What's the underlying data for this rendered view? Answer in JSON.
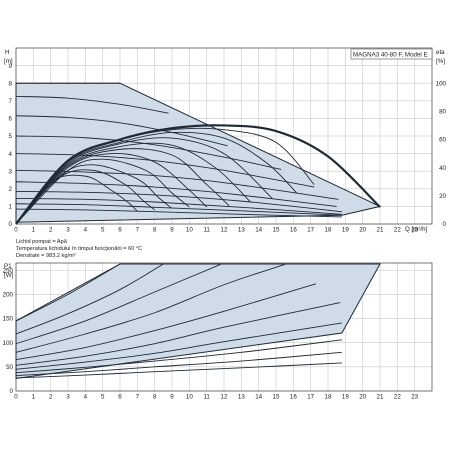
{
  "chart_data": [
    {
      "type": "line",
      "title": "MAGNA3 40-80 F, Model E",
      "y_label_left": "H",
      "y_unit_left": "[m]",
      "y_label_right": "eta",
      "y_unit_right": "[%]",
      "x_label": "Q [m³/h]",
      "xlim": [
        0,
        24
      ],
      "ylim": [
        0,
        10
      ],
      "ylim_right": [
        0,
        125
      ],
      "x_ticks": [
        "0",
        "1",
        "2",
        "3",
        "4",
        "5",
        "6",
        "7",
        "8",
        "9",
        "10",
        "11",
        "12",
        "13",
        "14",
        "15",
        "16",
        "17",
        "18",
        "19",
        "20",
        "21",
        "22",
        "23"
      ],
      "y_ticks": [
        "0",
        "1",
        "2",
        "3",
        "4",
        "5",
        "6",
        "7",
        "8",
        "9"
      ],
      "y_ticks_right": [
        "0",
        "20",
        "40",
        "60",
        "80",
        "100"
      ],
      "grid": true,
      "envelope": {
        "x": [
          0,
          6,
          21,
          18.8,
          0
        ],
        "y": [
          8,
          8,
          1.0,
          0.5,
          0.1
        ]
      },
      "series": [
        {
          "x": [
            0,
            6
          ],
          "y": [
            8,
            8
          ]
        },
        {
          "x": [
            0,
            3,
            6,
            8.8
          ],
          "y": [
            7.25,
            7.15,
            6.8,
            6.3
          ]
        },
        {
          "x": [
            0,
            3,
            6,
            9,
            12.2
          ],
          "y": [
            6.15,
            6.05,
            5.75,
            5.2,
            4.45
          ]
        },
        {
          "x": [
            0,
            4,
            8,
            12,
            15.3
          ],
          "y": [
            5.0,
            4.9,
            4.5,
            3.8,
            3.1
          ]
        },
        {
          "x": [
            0,
            4,
            8,
            12,
            17.2
          ],
          "y": [
            4.0,
            3.9,
            3.6,
            3.05,
            2.1
          ]
        },
        {
          "x": [
            0,
            4,
            8,
            12,
            18.6
          ],
          "y": [
            3.05,
            2.95,
            2.75,
            2.35,
            1.4
          ]
        },
        {
          "x": [
            0,
            4,
            8,
            12,
            18.5
          ],
          "y": [
            2.4,
            2.3,
            2.1,
            1.75,
            1.0
          ]
        },
        {
          "x": [
            0,
            4,
            8,
            13,
            18.8
          ],
          "y": [
            1.85,
            1.8,
            1.65,
            1.3,
            0.7
          ]
        },
        {
          "x": [
            0,
            4,
            8,
            13,
            18.8
          ],
          "y": [
            1.45,
            1.4,
            1.25,
            0.95,
            0.55
          ]
        },
        {
          "x": [
            0,
            4,
            8,
            13,
            18.8
          ],
          "y": [
            1.15,
            1.1,
            0.95,
            0.75,
            0.5
          ]
        },
        {
          "x": [
            0,
            4,
            8,
            13,
            18.8
          ],
          "y": [
            0.85,
            0.8,
            0.7,
            0.55,
            0.4
          ]
        }
      ],
      "efficiency_curves_percent": [
        {
          "x": [
            0,
            3,
            6,
            9,
            12,
            15,
            18,
            21
          ],
          "y": [
            0,
            45,
            60,
            68,
            70,
            66,
            48,
            12
          ]
        },
        {
          "x": [
            0,
            3,
            6,
            9,
            12,
            15,
            17.2
          ],
          "y": [
            0,
            45,
            60,
            67,
            67,
            58,
            28
          ]
        },
        {
          "x": [
            0,
            3,
            6,
            9,
            12,
            14.5,
            16.2
          ],
          "y": [
            0,
            44,
            58,
            65,
            61,
            43,
            22
          ]
        },
        {
          "x": [
            0,
            3,
            6,
            9,
            12,
            14.8
          ],
          "y": [
            0,
            43,
            57,
            61,
            50,
            18
          ]
        },
        {
          "x": [
            0,
            3,
            6,
            9,
            11.5,
            13.5
          ],
          "y": [
            0,
            42,
            55,
            56,
            40,
            16
          ]
        },
        {
          "x": [
            0,
            3,
            6,
            9,
            11,
            12.3
          ],
          "y": [
            0,
            41,
            53,
            49,
            28,
            13
          ]
        },
        {
          "x": [
            0,
            3,
            5.5,
            8,
            10,
            11.0
          ],
          "y": [
            0,
            40,
            50,
            44,
            24,
            12
          ]
        },
        {
          "x": [
            0,
            3,
            5,
            7.5,
            9.0,
            10.0
          ],
          "y": [
            0,
            38,
            46,
            38,
            22,
            12
          ]
        },
        {
          "x": [
            0,
            2.5,
            4.5,
            7,
            8.2,
            9.0
          ],
          "y": [
            0,
            34,
            42,
            32,
            19,
            11
          ]
        },
        {
          "x": [
            0,
            2.5,
            4.5,
            6.3,
            7.3,
            8.0
          ],
          "y": [
            0,
            33,
            38,
            28,
            17,
            10
          ]
        },
        {
          "x": [
            0,
            2,
            4,
            5.5,
            6.5,
            7.0
          ],
          "y": [
            0,
            30,
            34,
            24,
            15,
            9
          ]
        }
      ]
    },
    {
      "type": "line",
      "y_label": "P1",
      "y_unit": "[W]",
      "xlim": [
        0,
        24
      ],
      "ylim": [
        0,
        265
      ],
      "x_ticks": [
        "0",
        "1",
        "2",
        "3",
        "4",
        "5",
        "6",
        "7",
        "8",
        "9",
        "10",
        "11",
        "12",
        "13",
        "14",
        "15",
        "16",
        "17",
        "18",
        "19",
        "20",
        "21",
        "22",
        "23"
      ],
      "y_ticks": [
        "0",
        "50",
        "100",
        "150",
        "200",
        "250"
      ],
      "grid": true,
      "envelope": {
        "x": [
          0,
          6,
          21,
          18.8,
          0
        ],
        "y": [
          145,
          263,
          263,
          120,
          26
        ]
      },
      "series": [
        {
          "x": [
            0,
            3,
            6
          ],
          "y": [
            145,
            200,
            263
          ]
        },
        {
          "x": [
            0,
            3,
            6,
            8.5
          ],
          "y": [
            118,
            160,
            210,
            263
          ]
        },
        {
          "x": [
            0,
            4,
            8,
            11.8
          ],
          "y": [
            98,
            145,
            205,
            262
          ]
        },
        {
          "x": [
            0,
            4,
            8,
            12,
            15.5
          ],
          "y": [
            80,
            118,
            162,
            220,
            262
          ]
        },
        {
          "x": [
            0,
            4,
            8,
            12,
            17.3
          ],
          "y": [
            65,
            90,
            125,
            165,
            222
          ]
        },
        {
          "x": [
            0,
            4,
            8,
            12,
            18.7
          ],
          "y": [
            53,
            72,
            98,
            132,
            183
          ]
        },
        {
          "x": [
            0,
            4,
            8,
            12,
            18.8
          ],
          "y": [
            45,
            60,
            78,
            102,
            141
          ]
        },
        {
          "x": [
            0,
            4,
            8,
            13,
            18.8
          ],
          "y": [
            38,
            49,
            62,
            80,
            106
          ]
        },
        {
          "x": [
            0,
            4,
            8,
            13,
            18.8
          ],
          "y": [
            32,
            40,
            50,
            62,
            80
          ]
        },
        {
          "x": [
            0,
            4,
            8,
            13,
            18.8
          ],
          "y": [
            27,
            33,
            40,
            48,
            58
          ]
        }
      ]
    }
  ],
  "fluid_info": [
    "Lichid pompat = Apă",
    "Temperatura lichidului în timpul funcţionării = 60 °C",
    "Densitate = 983.2 kg/m³"
  ],
  "colors": {
    "band": "#cfdce8",
    "curve": "#1e2a36",
    "grid": "#c8c8c8"
  }
}
